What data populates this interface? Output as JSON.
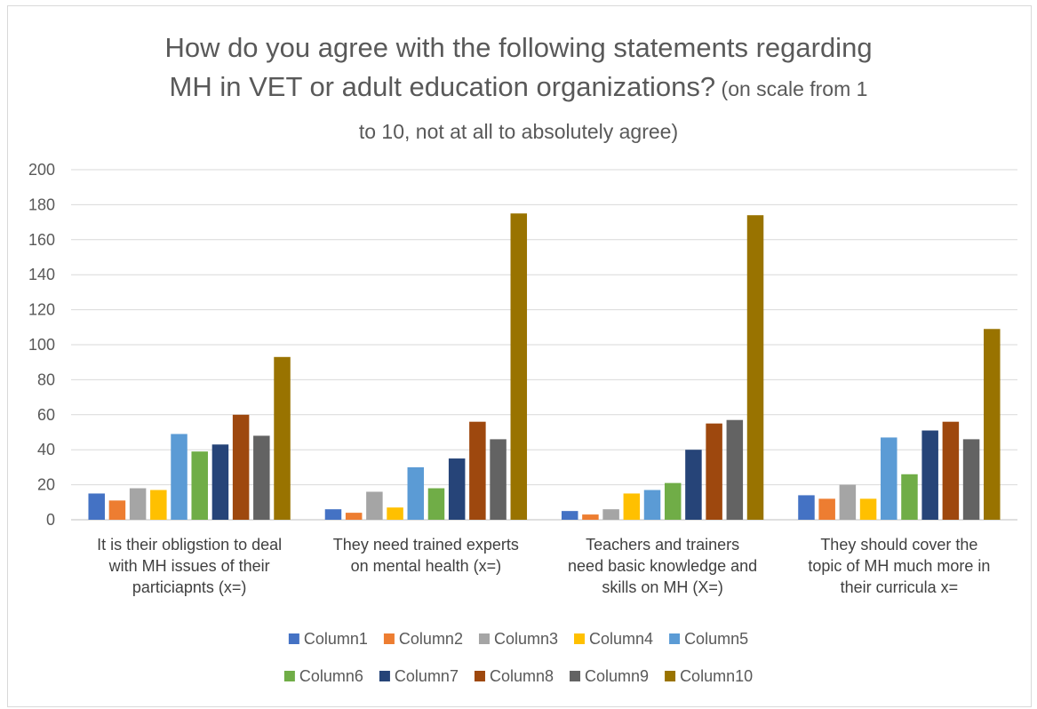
{
  "chart_data": {
    "type": "bar",
    "title_main_line1": "How do you agree with the following statements regarding",
    "title_main_line2": "MH in VET or adult education organizations?",
    "title_sub_line2": " (on scale from 1",
    "title_sub_line3": "to 10, not at all to absolutely agree)",
    "xlabel": "",
    "ylabel": "",
    "ylim": [
      0,
      200
    ],
    "yticks": [
      0,
      20,
      40,
      60,
      80,
      100,
      120,
      140,
      160,
      180,
      200
    ],
    "grid": true,
    "legend_position": "bottom",
    "categories": [
      [
        "It is their obligstion to deal",
        "with MH issues of their",
        "particiapnts (x=)"
      ],
      [
        "They need trained experts",
        "on mental health (x=)"
      ],
      [
        "Teachers and trainers",
        "need basic knowledge and",
        "skills on MH (X=)"
      ],
      [
        "They should cover the",
        "topic of MH much more in",
        "their curricula x="
      ]
    ],
    "series": [
      {
        "name": "Column1",
        "color": "#4472c4",
        "values": [
          15,
          6,
          5,
          14
        ]
      },
      {
        "name": "Column2",
        "color": "#ed7d31",
        "values": [
          11,
          4,
          3,
          12
        ]
      },
      {
        "name": "Column3",
        "color": "#a5a5a5",
        "values": [
          18,
          16,
          6,
          20
        ]
      },
      {
        "name": "Column4",
        "color": "#ffc000",
        "values": [
          17,
          7,
          15,
          12
        ]
      },
      {
        "name": "Column5",
        "color": "#5b9bd5",
        "values": [
          49,
          30,
          17,
          47
        ]
      },
      {
        "name": "Column6",
        "color": "#70ad47",
        "values": [
          39,
          18,
          21,
          26
        ]
      },
      {
        "name": "Column7",
        "color": "#264478",
        "values": [
          43,
          35,
          40,
          51
        ]
      },
      {
        "name": "Column8",
        "color": "#9e480e",
        "values": [
          60,
          56,
          55,
          56
        ]
      },
      {
        "name": "Column9",
        "color": "#636363",
        "values": [
          48,
          46,
          57,
          46
        ]
      },
      {
        "name": "Column10",
        "color": "#997300",
        "values": [
          93,
          175,
          174,
          109
        ]
      }
    ]
  }
}
